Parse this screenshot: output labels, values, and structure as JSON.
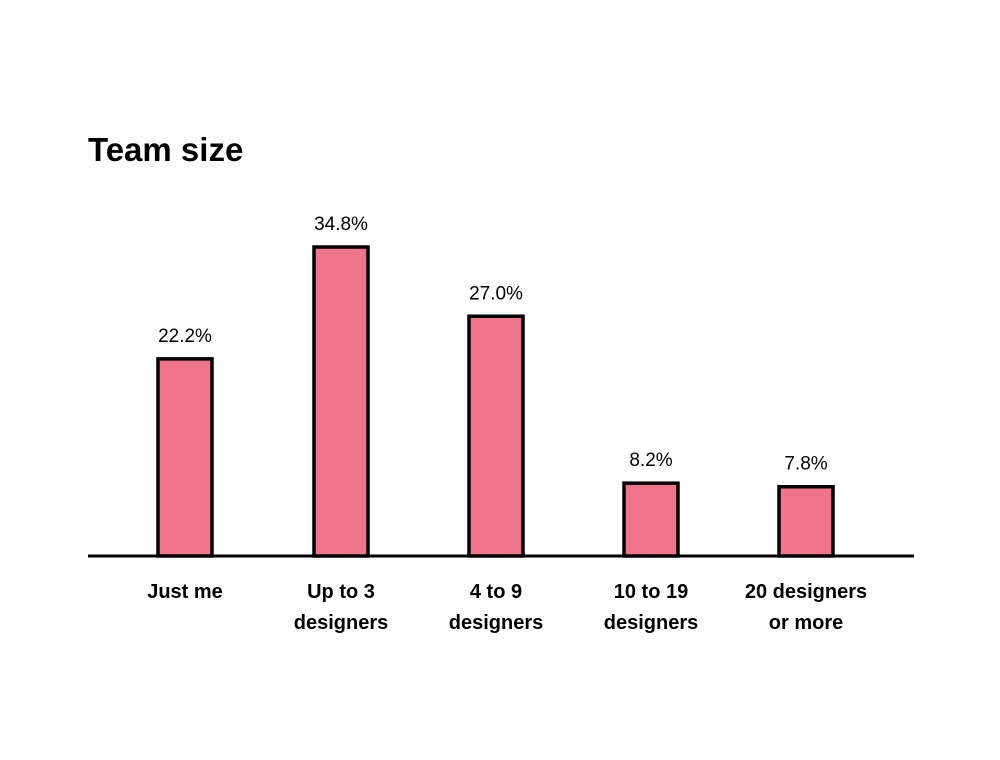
{
  "chart_data": {
    "type": "bar",
    "title": "Team size",
    "categories": [
      [
        "Just me"
      ],
      [
        "Up to 3",
        "designers"
      ],
      [
        "4 to 9",
        "designers"
      ],
      [
        "10 to 19",
        "designers"
      ],
      [
        "20 designers",
        "or more"
      ]
    ],
    "values": [
      22.2,
      34.8,
      27.0,
      8.2,
      7.8
    ],
    "value_labels": [
      "22.2%",
      "34.8%",
      "27.0%",
      "8.2%",
      "7.8%"
    ],
    "xlabel": "",
    "ylabel": "",
    "ylim": [
      0,
      34.8
    ],
    "grid": false,
    "legend": "none",
    "colors": {
      "bar_fill": "#f0758a",
      "bar_stroke": "#000000",
      "axis": "#000000",
      "text": "#000000"
    }
  }
}
